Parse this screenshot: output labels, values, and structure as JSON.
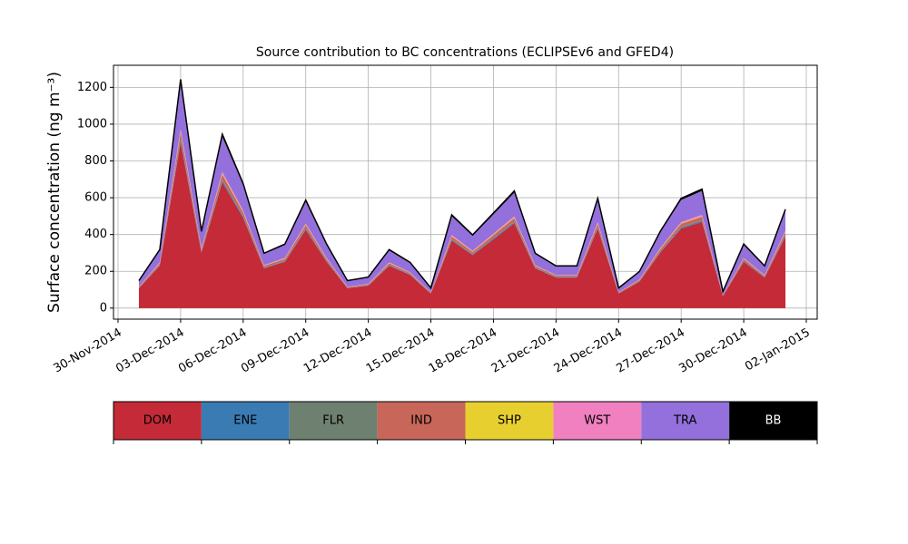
{
  "chart_data": {
    "type": "stacked_area",
    "title": "Source contribution to BC concentrations (ECLIPSEv6 and GFED4)",
    "y_label": "Surface concentration (ng m⁻³)",
    "x": [
      "2014-12-01",
      "2014-12-02",
      "2014-12-03",
      "2014-12-04",
      "2014-12-05",
      "2014-12-06",
      "2014-12-07",
      "2014-12-08",
      "2014-12-09",
      "2014-12-10",
      "2014-12-11",
      "2014-12-12",
      "2014-12-13",
      "2014-12-14",
      "2014-12-15",
      "2014-12-16",
      "2014-12-17",
      "2014-12-18",
      "2014-12-19",
      "2014-12-20",
      "2014-12-21",
      "2014-12-22",
      "2014-12-23",
      "2014-12-24",
      "2014-12-25",
      "2014-12-26",
      "2014-12-27",
      "2014-12-28",
      "2014-12-29",
      "2014-12-30",
      "2014-12-31",
      "2015-01-01"
    ],
    "series": [
      {
        "name": "DOM",
        "color": "#c42a37",
        "values": [
          108,
          230,
          900,
          302,
          684,
          490,
          216,
          252,
          425,
          252,
          108,
          122,
          230,
          180,
          79,
          367,
          288,
          374,
          461,
          216,
          166,
          166,
          432,
          79,
          144,
          302,
          432,
          468,
          65,
          252,
          166,
          389
        ]
      },
      {
        "name": "ENE",
        "color": "#3a7bb4",
        "values": [
          1.5,
          3.2,
          12.5,
          4.2,
          9.5,
          6.8,
          3,
          3.5,
          5.9,
          3.5,
          1.5,
          1.7,
          3.2,
          2.5,
          1.1,
          5.1,
          4,
          5.2,
          6.4,
          3,
          2.3,
          2.3,
          6,
          1.1,
          2,
          4.2,
          6,
          6.5,
          0.9,
          3.5,
          2.3,
          5.4
        ]
      },
      {
        "name": "FLR",
        "color": "#6e8070",
        "values": [
          0.8,
          1.6,
          6.3,
          2.1,
          4.8,
          3.4,
          1.5,
          1.8,
          3,
          1.8,
          0.8,
          0.9,
          1.6,
          1.3,
          0.6,
          2.6,
          2,
          2.6,
          3.2,
          1.5,
          1.2,
          1.2,
          3,
          0.6,
          1,
          2.1,
          3,
          3.3,
          0.5,
          1.8,
          1.2,
          2.7
        ]
      },
      {
        "name": "IND",
        "color": "#c8665a",
        "values": [
          4.5,
          9.6,
          37.5,
          12.6,
          28.5,
          20.4,
          9,
          10.5,
          17.7,
          10.5,
          4.5,
          5.1,
          9.6,
          7.5,
          3.3,
          15.3,
          12,
          15.6,
          19.2,
          9,
          6.9,
          6.9,
          18,
          3.3,
          6,
          12.6,
          18,
          19.5,
          2.7,
          10.5,
          6.9,
          16.2
        ]
      },
      {
        "name": "SHP",
        "color": "#e8cf30",
        "values": [
          0.8,
          1.6,
          6.3,
          2.1,
          4.8,
          3.4,
          1.5,
          1.8,
          3,
          1.8,
          0.8,
          0.9,
          1.6,
          1.3,
          0.6,
          2.6,
          2,
          2.6,
          3.2,
          1.5,
          1.2,
          1.2,
          3,
          0.6,
          1,
          2.1,
          3,
          3.3,
          0.5,
          1.8,
          1.2,
          2.7
        ]
      },
      {
        "name": "WST",
        "color": "#f080bf",
        "values": [
          1.5,
          3.2,
          12.5,
          4.2,
          9.5,
          6.8,
          3,
          3.5,
          5.9,
          3.5,
          1.5,
          1.7,
          3.2,
          2.5,
          1.1,
          5.1,
          4,
          5.2,
          6.4,
          3,
          2.3,
          2.3,
          6,
          1.1,
          2,
          4.2,
          6,
          6.5,
          0.9,
          3.5,
          2.3,
          5.4
        ]
      },
      {
        "name": "TRA",
        "color": "#9370db",
        "values": [
          30,
          64,
          250,
          84,
          190,
          136,
          60,
          70,
          118,
          70,
          30,
          34,
          64,
          50,
          22,
          102,
          80,
          104,
          128,
          60,
          46,
          46,
          120,
          22,
          40,
          84,
          120,
          130,
          18,
          70,
          46,
          108
        ]
      },
      {
        "name": "BB",
        "color": "#000000",
        "values": [
          2.3,
          4.8,
          18.8,
          6.3,
          14.3,
          10.2,
          4.5,
          5.3,
          8.9,
          5.3,
          2.3,
          2.6,
          4.8,
          3.8,
          1.7,
          7.7,
          6,
          7.8,
          9.6,
          4.5,
          3.5,
          3.5,
          9,
          1.7,
          3,
          6.3,
          9,
          9.8,
          1.4,
          5.3,
          3.5,
          8.1
        ]
      }
    ],
    "xlim": [
      "2014-11-30",
      "2015-01-02"
    ],
    "xticks": [
      {
        "value": "2014-11-30",
        "label": "30-Nov-2014"
      },
      {
        "value": "2014-12-03",
        "label": "03-Dec-2014"
      },
      {
        "value": "2014-12-06",
        "label": "06-Dec-2014"
      },
      {
        "value": "2014-12-09",
        "label": "09-Dec-2014"
      },
      {
        "value": "2014-12-12",
        "label": "12-Dec-2014"
      },
      {
        "value": "2014-12-15",
        "label": "15-Dec-2014"
      },
      {
        "value": "2014-12-18",
        "label": "18-Dec-2014"
      },
      {
        "value": "2014-12-21",
        "label": "21-Dec-2014"
      },
      {
        "value": "2014-12-24",
        "label": "24-Dec-2014"
      },
      {
        "value": "2014-12-27",
        "label": "27-Dec-2014"
      },
      {
        "value": "2014-12-30",
        "label": "30-Dec-2014"
      },
      {
        "value": "2015-01-02",
        "label": "02-Jan-2015"
      }
    ],
    "ylim": [
      -60,
      1320
    ],
    "yticks": [
      0,
      200,
      400,
      600,
      800,
      1000,
      1200
    ],
    "grid": true
  }
}
